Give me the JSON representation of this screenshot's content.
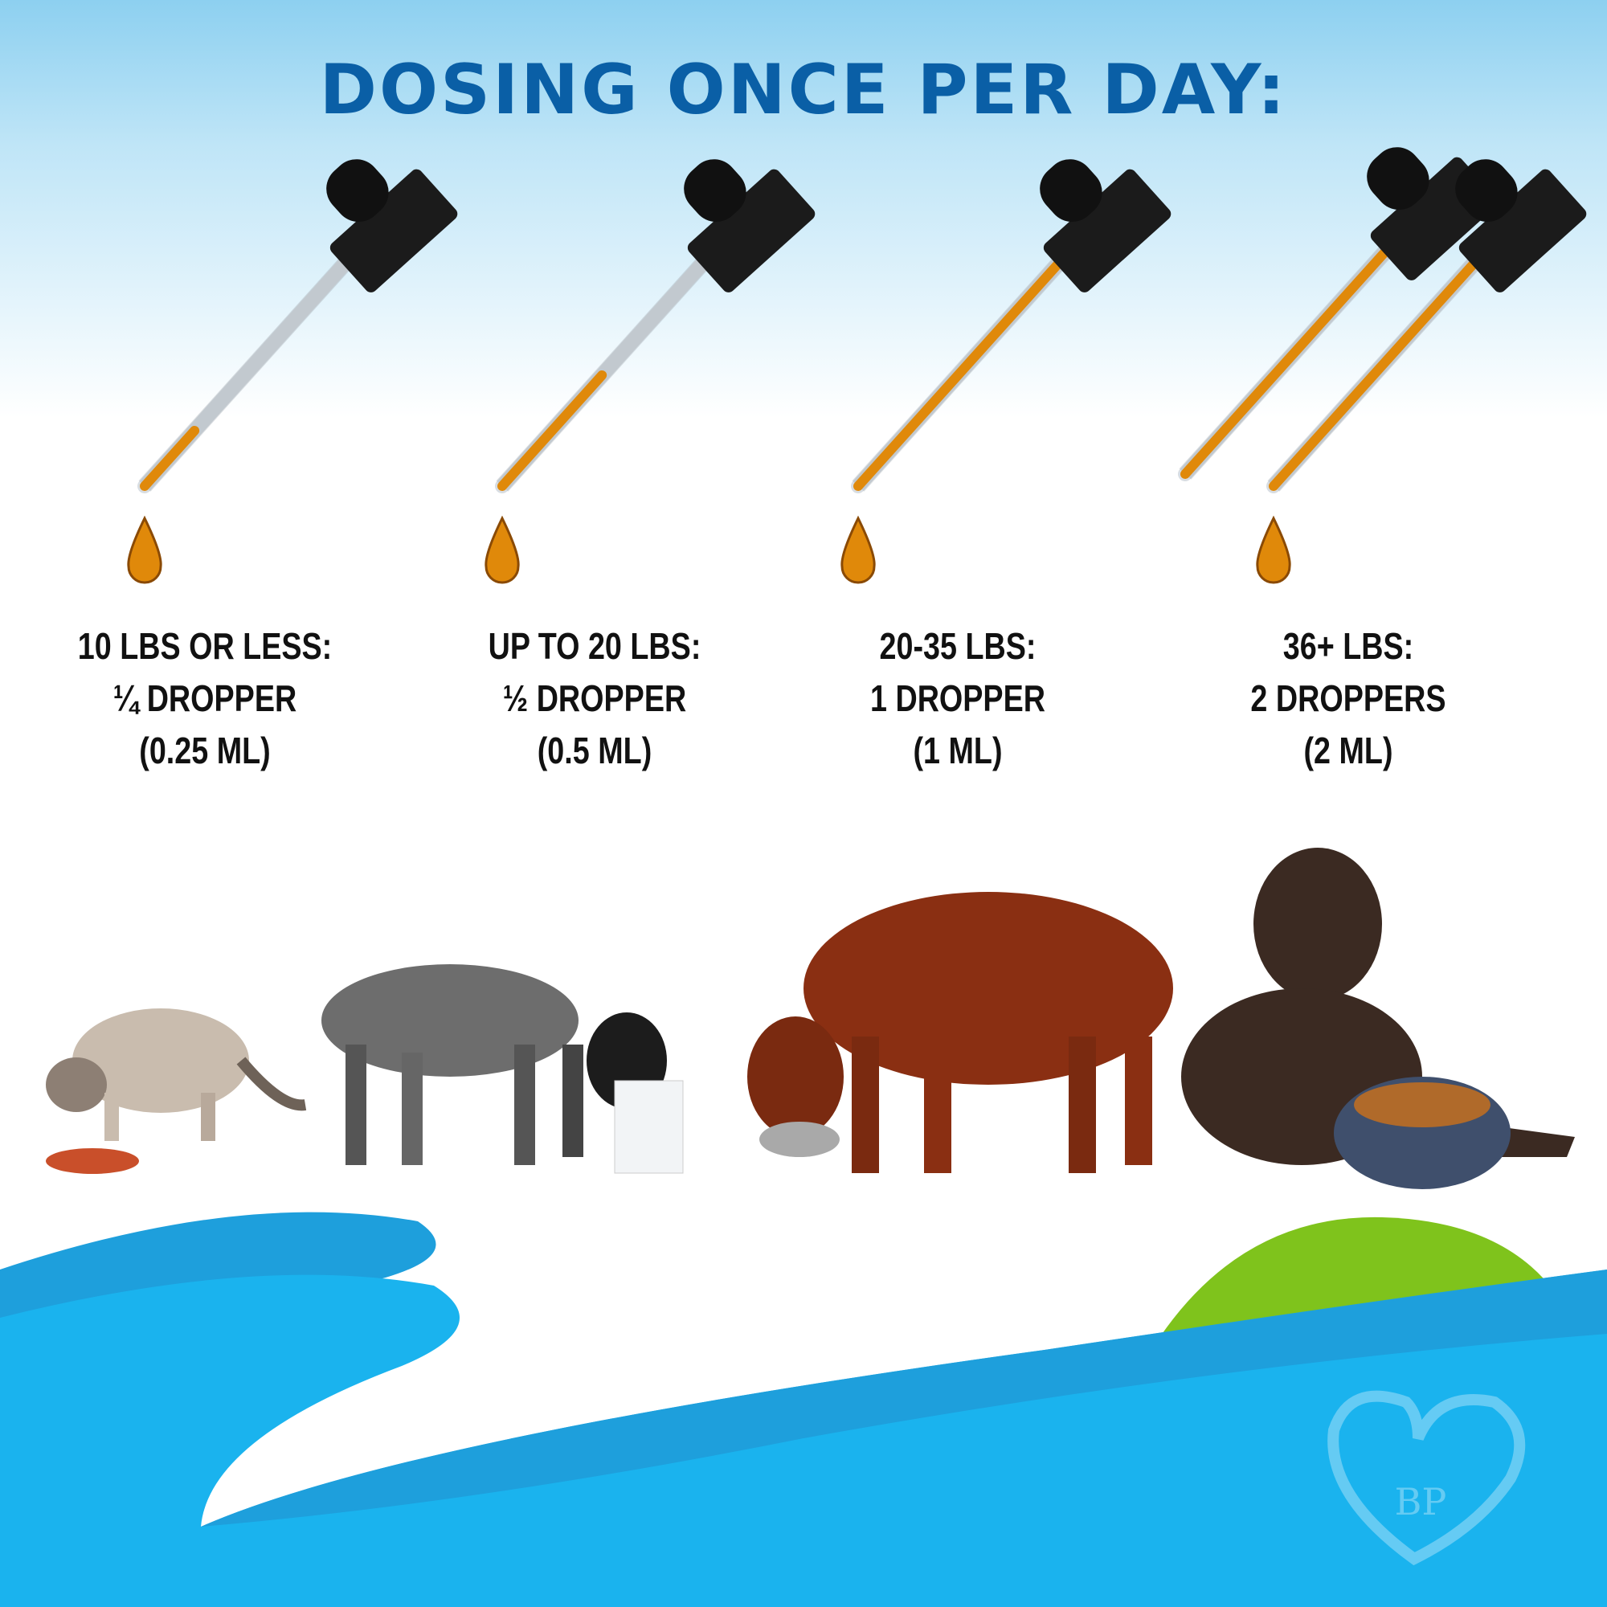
{
  "title": "DOSING ONCE PER DAY:",
  "doses": [
    {
      "weight": "10 LBS OR LESS:",
      "amount": "¼ DROPPER",
      "volume": "(0.25 ML)",
      "droppers": 1,
      "fill_fraction": 0.25
    },
    {
      "weight": "UP TO 20 LBS:",
      "amount": "½ DROPPER",
      "volume": "(0.5 ML)",
      "droppers": 1,
      "fill_fraction": 0.5
    },
    {
      "weight": "20-35 LBS:",
      "amount": "1 DROPPER",
      "volume": "(1 ML)",
      "droppers": 1,
      "fill_fraction": 1
    },
    {
      "weight": "36+ LBS:",
      "amount": "2 DROPPERS",
      "volume": "(2 ML)",
      "droppers": 2,
      "fill_fraction": 1
    }
  ],
  "animals": [
    "cat",
    "spotted-puppy",
    "red-setter",
    "chocolate-labrador"
  ],
  "logo": {
    "text": "BP"
  },
  "colors": {
    "title": "#0a5fa6",
    "oil": "#e0890a",
    "wave_blue": "#1ab3ee",
    "wave_dark": "#1e9fdc",
    "green": "#7fc31c"
  }
}
